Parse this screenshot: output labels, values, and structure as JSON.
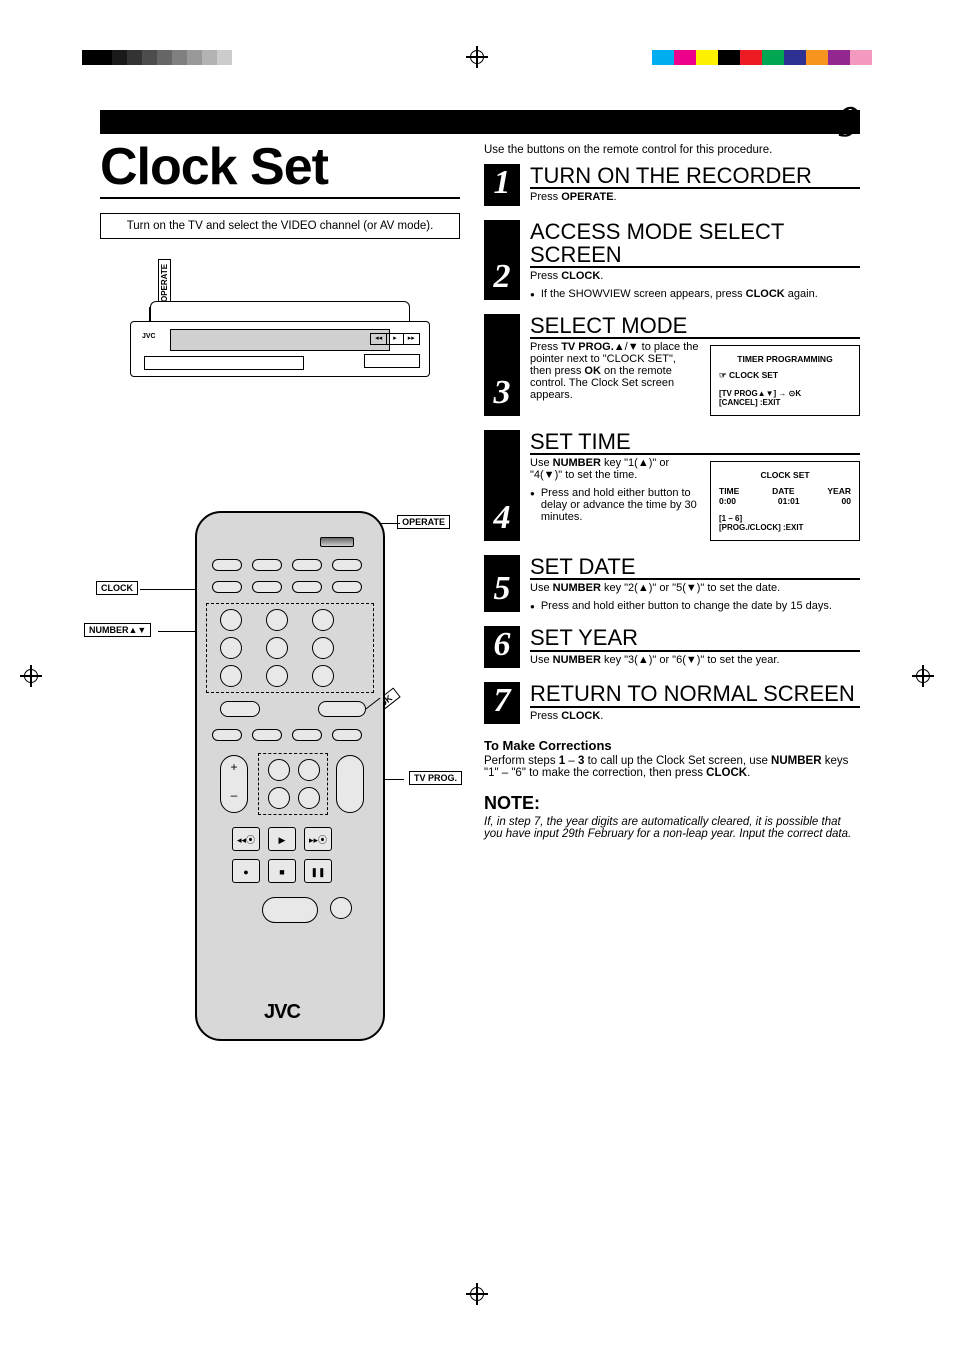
{
  "page_number": "9",
  "reg_marks": {
    "mono_shades": [
      "#000000",
      "#000000",
      "#1a1a1a",
      "#333333",
      "#4d4d4d",
      "#666666",
      "#808080",
      "#999999",
      "#b3b3b3",
      "#cccccc"
    ],
    "color_swatches": [
      "#00aeef",
      "#ec008c",
      "#fff200",
      "#000000",
      "#ed1c24",
      "#00a651",
      "#2e3192",
      "#f7941d",
      "#92278f",
      "#f49ac1"
    ]
  },
  "title": "Clock Set",
  "intro_box": "Turn on the TV and select the VIDEO channel (or AV mode).",
  "vcr": {
    "brand": "JVC",
    "front_btns": [
      "◂◂",
      "▸",
      "▸▸"
    ],
    "operate_label": "OPERATE"
  },
  "remote": {
    "labels": {
      "operate": "OPERATE",
      "clock": "CLOCK",
      "number": "NUMBER▲▼",
      "ok": "OK",
      "tvprog": "TV PROG."
    },
    "brand": "JVC",
    "transport_icons": [
      "◂◂⦿",
      "▶",
      "▸▸⦿",
      "●",
      "■",
      "❚❚"
    ],
    "rocker_plus": "+",
    "rocker_minus": "–"
  },
  "right_intro": "Use the buttons on the remote control for this procedure.",
  "steps": [
    {
      "n": "1",
      "h": "TURN ON THE RECORDER",
      "sub_pre": "Press ",
      "sub_b": "OPERATE",
      "sub_post": "."
    },
    {
      "n": "2",
      "h": "ACCESS MODE SELECT SCREEN",
      "sub_pre": "Press ",
      "sub_b": "CLOCK",
      "sub_post": ".",
      "bullets": [
        {
          "pre": "If the SHOWVIEW screen appears, press ",
          "b": "CLOCK",
          "post": " again."
        }
      ]
    },
    {
      "n": "3",
      "h": "SELECT MODE",
      "body_html": "Press <b>TV PROG.</b>▲/▼ to place the pointer next to \"CLOCK SET\", then press <b>OK</b> on the remote control. The Clock Set screen appears.",
      "osd": {
        "title": "TIMER PROGRAMMING",
        "line1": "CLOCK SET",
        "foot1": "[TV PROG▲▼] → ⊙K",
        "foot2": "[CANCEL] :EXIT"
      }
    },
    {
      "n": "4",
      "h": "SET TIME",
      "body_html": "Use <b>NUMBER</b> key \"1(▲)\" or \"4(▼)\" to set the time.",
      "bullets": [
        {
          "pre": "Press and hold either button to delay or advance the time by 30 minutes.",
          "b": "",
          "post": ""
        }
      ],
      "osd": {
        "title": "CLOCK SET",
        "cols": [
          "TIME",
          "DATE",
          "YEAR"
        ],
        "vals": [
          "0:00",
          "01:01",
          "00"
        ],
        "foot1": "[1 – 6]",
        "foot2": "[PROG./CLOCK] :EXIT"
      }
    },
    {
      "n": "5",
      "h": "SET DATE",
      "body_html": "Use <b>NUMBER</b> key \"2(▲)\" or \"5(▼)\" to set the date.",
      "bullets": [
        {
          "pre": "Press and hold either button to change the date by 15 days.",
          "b": "",
          "post": ""
        }
      ]
    },
    {
      "n": "6",
      "h": "SET YEAR",
      "body_html": "Use <b>NUMBER</b> key \"3(▲)\" or \"6(▼)\" to set the year."
    },
    {
      "n": "7",
      "h": "RETURN TO NORMAL SCREEN",
      "sub_pre": "Press ",
      "sub_b": "CLOCK",
      "sub_post": "."
    }
  ],
  "corrections": {
    "h": "To Make Corrections",
    "p_pre": "Perform steps ",
    "p_b1": "1",
    "p_mid1": " – ",
    "p_b2": "3",
    "p_mid2": " to call up the Clock Set screen, use ",
    "p_b3": "NUMBER",
    "p_mid3": " keys \"1\" – \"6\" to make the correction, then press ",
    "p_b4": "CLOCK",
    "p_post": "."
  },
  "note": {
    "h": "NOTE:",
    "p": "If, in step 7, the year digits are automatically cleared, it is possible that you have input 29th February for a non-leap year. Input the correct data."
  }
}
